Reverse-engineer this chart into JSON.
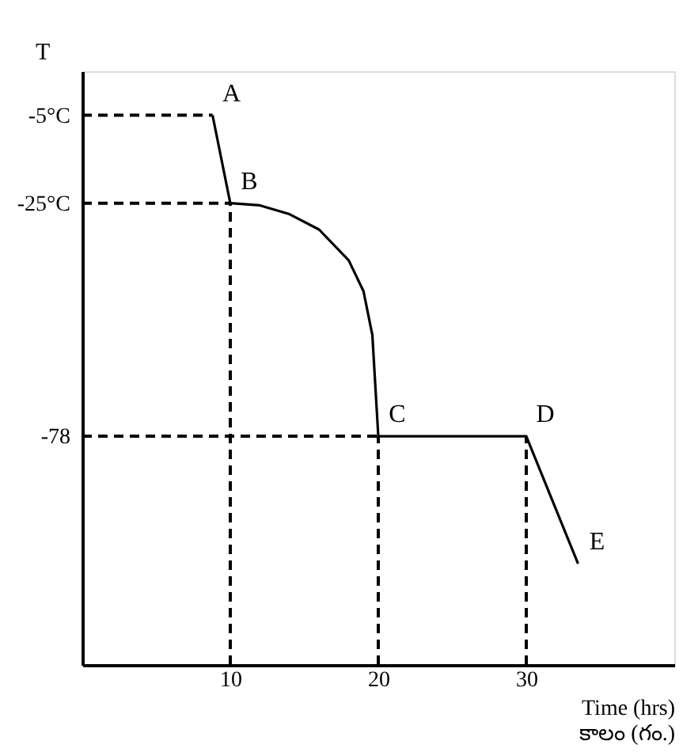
{
  "chart_data": {
    "type": "line",
    "xlabel": "Time (hrs)\nకాలం (గం.)",
    "ylabel": "T",
    "series": [
      {
        "color": "#000000",
        "x": [
          8.8,
          10,
          12,
          14,
          16,
          18,
          19,
          19.6,
          20,
          30,
          33.5
        ],
        "values": [
          -5,
          -25,
          -25.5,
          -27.5,
          -31,
          -38,
          -45,
          -55,
          -78,
          -78,
          -107
        ]
      }
    ],
    "xlim": [
      0,
      40
    ],
    "ylim": [
      -130,
      5
    ],
    "xticks": [
      10,
      20,
      30
    ],
    "yticks": [
      {
        "value": -5,
        "label": "-5°C"
      },
      {
        "value": -25,
        "label": "-25°C"
      },
      -78
    ],
    "ref_lines": [
      {
        "axis": "y",
        "value": -5,
        "label": null,
        "line_style": "dashed"
      },
      {
        "axis": "y",
        "value": -25,
        "label": null,
        "line_style": "dashed"
      },
      {
        "axis": "y",
        "value": -78,
        "label": null,
        "line_style": "dashed"
      },
      {
        "axis": "x",
        "value": 10,
        "label": null,
        "line_style": "dashed"
      },
      {
        "axis": "x",
        "value": 20,
        "label": null,
        "line_style": "dashed"
      },
      {
        "axis": "x",
        "value": 30,
        "label": null,
        "line_style": "dashed"
      }
    ],
    "annotations": [
      {
        "text": "A",
        "x": 8.8,
        "y": -5
      },
      {
        "text": "B",
        "x": 10,
        "y": -25
      },
      {
        "text": "C",
        "x": 20,
        "y": -78
      },
      {
        "text": "D",
        "x": 30,
        "y": -78
      },
      {
        "text": "E",
        "x": 33.5,
        "y": -107
      }
    ],
    "grid": false,
    "marker": "none",
    "line_style": "solid"
  }
}
